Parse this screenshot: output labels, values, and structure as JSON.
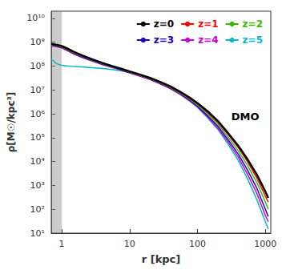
{
  "chart_data": {
    "type": "line",
    "log": true,
    "grid": false,
    "legend": "upper right",
    "xlabel": "r [kpc]",
    "ylabel": "ρ[M☉/kpc³]",
    "xlim": [
      0.7,
      1200
    ],
    "ylim": [
      10,
      20000000000.0
    ],
    "xticks": [
      1,
      10,
      100,
      1000
    ],
    "yticks": [
      {
        "value": 10,
        "label": "10¹"
      },
      {
        "value": 100,
        "label": "10²"
      },
      {
        "value": 1000,
        "label": "10³"
      },
      {
        "value": 10000,
        "label": "10⁴"
      },
      {
        "value": 100000,
        "label": "10⁵"
      },
      {
        "value": 1000000,
        "label": "10⁶"
      },
      {
        "value": 10000000,
        "label": "10⁷"
      },
      {
        "value": 100000000,
        "label": "10⁸"
      },
      {
        "value": 1000000000,
        "label": "10⁹"
      },
      {
        "value": 10000000000,
        "label": "10¹⁰"
      }
    ],
    "shaded_xmax": 1.0,
    "annotation": "DMO",
    "series": [
      {
        "name": "z=0",
        "color": "#000000",
        "x": [
          0.7,
          0.85,
          1.0,
          1.2,
          1.5,
          2.0,
          2.5,
          3.0,
          4.0,
          5.5,
          7.5,
          10,
          14,
          20,
          28,
          40,
          55,
          75,
          100,
          140,
          200,
          280,
          400,
          550,
          750,
          1000,
          1100
        ],
        "values": [
          850000000.0,
          780000000.0,
          700000000.0,
          550000000.0,
          400000000.0,
          280000000.0,
          220000000.0,
          180000000.0,
          135000000.0,
          100000000.0,
          78000000.0,
          60000000.0,
          45000000.0,
          32000000.0,
          22000000.0,
          14000000.0,
          8500000.0,
          5000000.0,
          2800000.0,
          1300000.0,
          500000.0,
          160000.0,
          45000.0,
          12000.0,
          2800.0,
          550.0,
          300.0
        ]
      },
      {
        "name": "z=1",
        "color": "#ff0000",
        "x": [
          0.7,
          0.85,
          1.0,
          1.2,
          1.5,
          2.0,
          2.5,
          3.0,
          4.0,
          5.5,
          7.5,
          10,
          14,
          20,
          28,
          40,
          55,
          75,
          100,
          140,
          200,
          280,
          400,
          550,
          750,
          1000,
          1100
        ],
        "values": [
          820000000.0,
          750000000.0,
          670000000.0,
          520000000.0,
          380000000.0,
          270000000.0,
          210000000.0,
          175000000.0,
          130000000.0,
          98000000.0,
          75000000.0,
          58000000.0,
          43000000.0,
          31000000.0,
          21000000.0,
          13000000.0,
          8000000.0,
          4600000.0,
          2600000.0,
          1150000.0,
          440000.0,
          140000.0,
          38000.0,
          9500.0,
          2000.0,
          350.0,
          200.0
        ]
      },
      {
        "name": "z=2",
        "color": "#33bb00",
        "x": [
          0.7,
          0.85,
          1.0,
          1.2,
          1.5,
          2.0,
          2.5,
          3.0,
          4.0,
          5.5,
          7.5,
          10,
          14,
          20,
          28,
          40,
          55,
          75,
          100,
          140,
          200,
          280,
          400,
          550,
          750,
          1000,
          1100
        ],
        "values": [
          780000000.0,
          720000000.0,
          640000000.0,
          500000000.0,
          360000000.0,
          255000000.0,
          200000000.0,
          168000000.0,
          126000000.0,
          95000000.0,
          73000000.0,
          56000000.0,
          41000000.0,
          29500000.0,
          20000000.0,
          12500000.0,
          7500000.0,
          4300000.0,
          2350000.0,
          1000000.0,
          370000.0,
          110000.0,
          28000.0,
          6500.0,
          1300.0,
          200.0,
          100.0
        ]
      },
      {
        "name": "z=3",
        "color": "#2200cc",
        "x": [
          0.7,
          0.85,
          1.0,
          1.2,
          1.5,
          2.0,
          2.5,
          3.0,
          4.0,
          5.5,
          7.5,
          10,
          14,
          20,
          28,
          40,
          55,
          75,
          100,
          140,
          200,
          280,
          400,
          550,
          750,
          1000,
          1100
        ],
        "values": [
          750000000.0,
          680000000.0,
          600000000.0,
          470000000.0,
          340000000.0,
          240000000.0,
          190000000.0,
          160000000.0,
          120000000.0,
          92000000.0,
          70000000.0,
          54000000.0,
          40000000.0,
          28500000.0,
          19000000.0,
          11800000.0,
          7000000.0,
          3900000.0,
          2100000.0,
          850000.0,
          300000.0,
          85000.0,
          20000.0,
          4200.0,
          750.0,
          100.0,
          50.0
        ]
      },
      {
        "name": "z=4",
        "color": "#cc00cc",
        "x": [
          0.7,
          0.85,
          1.0,
          1.2,
          1.5,
          2.0,
          2.5,
          3.0,
          4.0,
          5.5,
          7.5,
          10,
          14,
          20,
          28,
          40,
          55,
          75,
          100,
          140,
          200,
          280,
          400,
          550,
          750,
          1000,
          1100
        ],
        "values": [
          720000000.0,
          650000000.0,
          580000000.0,
          450000000.0,
          320000000.0,
          230000000.0,
          182000000.0,
          153000000.0,
          115000000.0,
          88000000.0,
          68000000.0,
          52000000.0,
          38000000.0,
          27200000.0,
          18200000.0,
          11200000.0,
          6600000.0,
          3700000.0,
          1950000.0,
          750000.0,
          250000.0,
          68000.0,
          15000.0,
          2800.0,
          450.0,
          55.0,
          30.0
        ]
      },
      {
        "name": "z=5",
        "color": "#00bbcc",
        "x": [
          0.7,
          0.75,
          0.8,
          0.85,
          0.9,
          0.95,
          1.0,
          1.1,
          1.2,
          1.4,
          1.7,
          2.0,
          2.5,
          3.0,
          4.0,
          5.5,
          7.5,
          10,
          14,
          20,
          28,
          40,
          55,
          75,
          100,
          140,
          200,
          280,
          400,
          550,
          750,
          1000,
          1100
        ],
        "values": [
          200000000.0,
          170000000.0,
          140000000.0,
          125000000.0,
          118000000.0,
          112000000.0,
          108000000.0,
          105000000.0,
          102000000.0,
          98000000.0,
          95000000.0,
          92000000.0,
          88000000.0,
          85000000.0,
          80000000.0,
          72000000.0,
          63000000.0,
          53000000.0,
          40000000.0,
          29000000.0,
          19500000.0,
          12000000.0,
          6800000.0,
          3600000.0,
          1850000.0,
          700000.0,
          220000.0,
          55000.0,
          11000.0,
          1800.0,
          250.0,
          30.0,
          15.0
        ]
      }
    ]
  }
}
